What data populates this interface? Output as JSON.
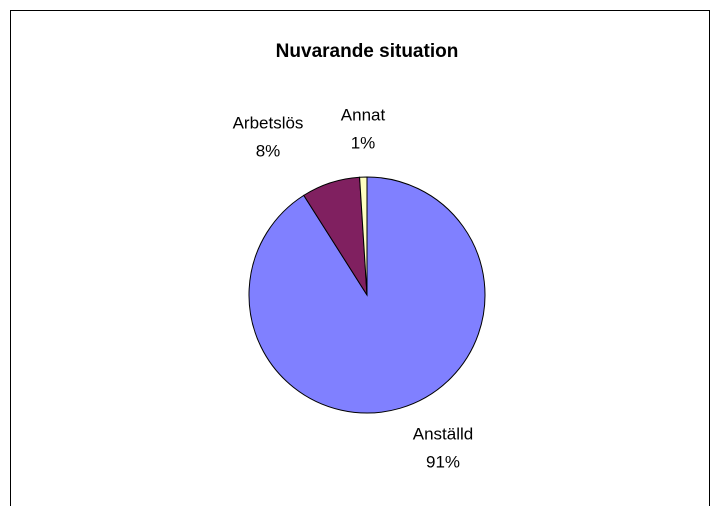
{
  "chart_data": {
    "type": "pie",
    "title": "Nuvarande situation",
    "categories": [
      "Anställd",
      "Arbetslös",
      "Annat"
    ],
    "values": [
      91,
      8,
      1
    ],
    "value_labels": [
      "91%",
      "8%",
      "1%"
    ],
    "colors": [
      "#8080ff",
      "#802060",
      "#ffffc0"
    ]
  }
}
